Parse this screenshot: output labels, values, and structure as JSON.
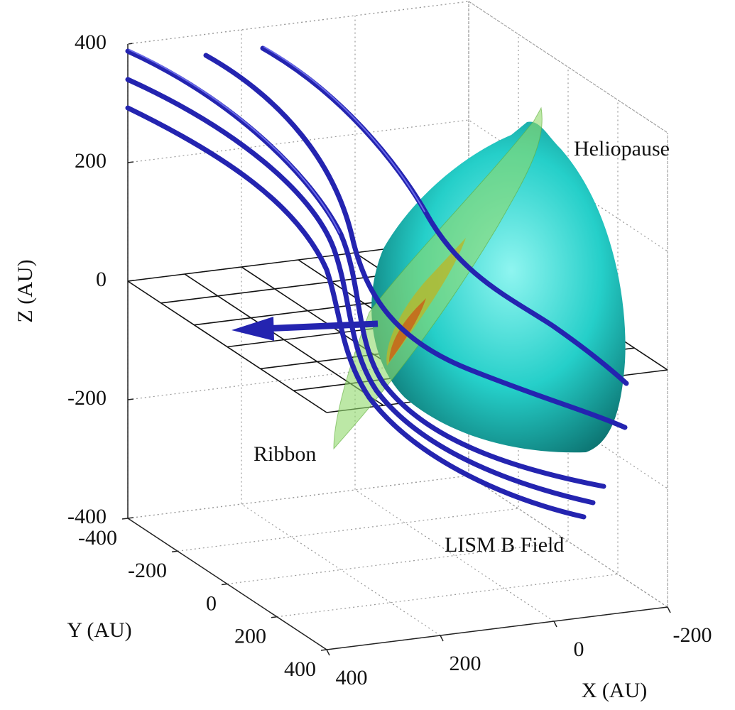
{
  "chart_data": {
    "type": "scene3d",
    "xlabel": "X (AU)",
    "ylabel": "Y (AU)",
    "zlabel": "Z (AU)",
    "xlim": [
      400,
      -200
    ],
    "xticks": [
      400,
      200,
      0,
      -200
    ],
    "ylim": [
      -400,
      400
    ],
    "yticks": [
      -400,
      -200,
      0,
      200,
      400
    ],
    "zlim": [
      -400,
      400
    ],
    "zticks": [
      -400,
      -200,
      0,
      200,
      400
    ],
    "grid": true,
    "annotations": [
      "Heliopause",
      "Ribbon",
      "LISM B Field"
    ]
  }
}
